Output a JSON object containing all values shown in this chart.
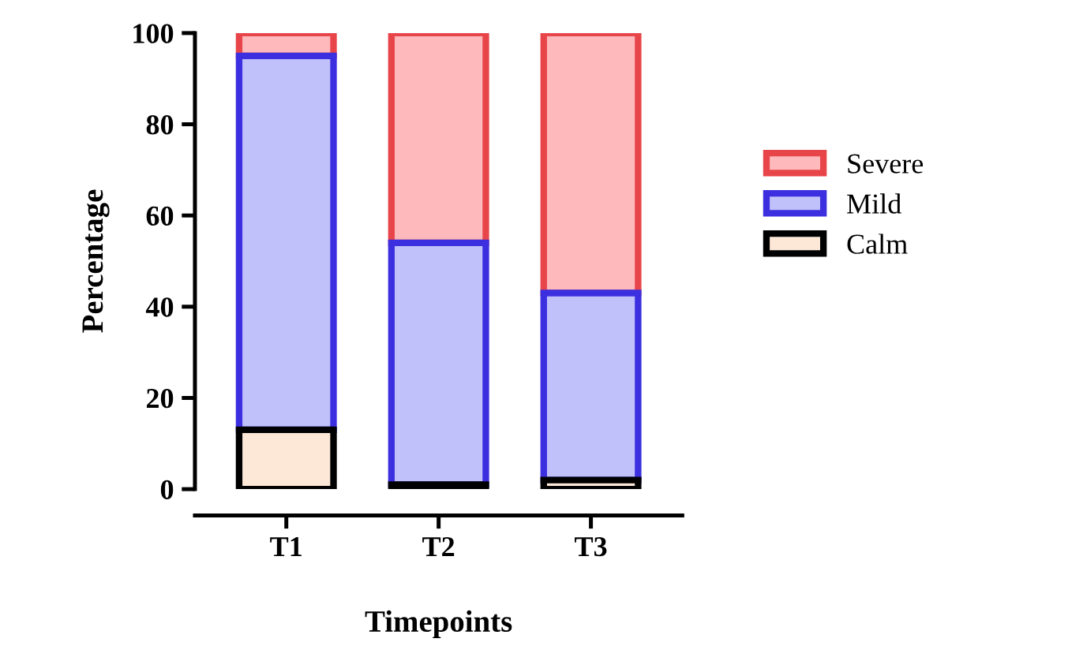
{
  "chart_data": {
    "type": "bar",
    "stacked": true,
    "xlabel": "Timepoints",
    "ylabel": "Percentage",
    "categories": [
      "T1",
      "T2",
      "T3"
    ],
    "series": [
      {
        "name": "Calm",
        "color": "#fde8d8",
        "values": [
          13,
          1,
          2
        ]
      },
      {
        "name": "Mild",
        "color": "#c0c0fa",
        "values": [
          82,
          53,
          41
        ]
      },
      {
        "name": "Severe",
        "color": "#fdb9bc",
        "values": [
          5,
          46,
          57
        ]
      }
    ],
    "ylim": [
      0,
      100
    ],
    "yticks": [
      0,
      20,
      40,
      60,
      80,
      100
    ],
    "grid": false,
    "legend": "right"
  }
}
